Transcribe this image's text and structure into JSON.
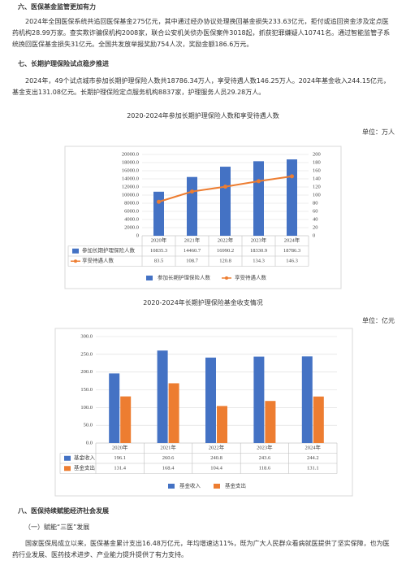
{
  "sections": [
    {
      "heading": "六、医保基金监管更加有力",
      "paragraph": "2024年全国医保系统共追回医保基金275亿元，其中通过经办协议处理挽回基金损失233.63亿元，拒付或追回资金涉及定点医药机构28.99万家。查实欺诈骗保机构2008家，联合公安机关侦办医保案件3018起，抓获犯罪嫌疑人10741名。通过智能监管子系统挽回医保基金损失31亿元。全国共发放举报奖励754人次，奖励金额186.6万元。"
    },
    {
      "heading": "七、长期护理保险试点稳步推进",
      "paragraph": "2024年，49个试点城市参加长期护理保险人数共18786.34万人，享受待遇人数146.25万人。2024年基金收入244.15亿元，基金支出131.08亿元。长期护理保险定点服务机构8837家，护理服务人员29.28万人。"
    },
    {
      "heading": "八、医保持续赋能经济社会发展",
      "subheading": "（一）赋能“三医”发展",
      "paragraph": "国家医保局成立以来，医保基金累计支出16.48万亿元，年均增速达11%，既为广大人民群众看病就医提供了坚实保障，也为医药行业发展、医药技术进步、产业能力提升提供了有力支持。"
    }
  ],
  "chart_data": [
    {
      "type": "bar",
      "title": "2020-2024年参加长期护理保险人数和享受待遇人数",
      "unit": "单位：万人",
      "categories": [
        "2020年",
        "2021年",
        "2022年",
        "2023年",
        "2024年"
      ],
      "series": [
        {
          "name": "参加长期护理保险人数",
          "color": "#4472c4",
          "values": [
            10835.3,
            14460.7,
            16990.2,
            18330.9,
            18786.3
          ]
        },
        {
          "name": "享受待遇人数",
          "color": "#ed7d31",
          "type": "line",
          "axis": "y2",
          "values": [
            83.5,
            108.7,
            120.8,
            134.3,
            146.3
          ]
        }
      ],
      "ylim": [
        0,
        20000
      ],
      "yticks": [
        0,
        {
          "value": 2000,
          "label": "2000.0"
        },
        {
          "value": 4000,
          "label": "4000.0"
        },
        {
          "value": 6000,
          "label": "6000.0"
        },
        {
          "value": 8000,
          "label": "8000.0"
        },
        {
          "value": 10000,
          "label": "10000.0"
        },
        {
          "value": 12000,
          "label": "12000.0"
        },
        {
          "value": 14000,
          "label": "14000.0"
        },
        {
          "value": 16000,
          "label": "16000.0"
        },
        {
          "value": 18000,
          "label": "18000.0"
        },
        {
          "value": 20000,
          "label": "20000.0"
        }
      ],
      "y2lim": [
        0,
        200
      ],
      "y2ticks": [
        0,
        20,
        40,
        60,
        80,
        100,
        120,
        140,
        160,
        180,
        200
      ],
      "grid": true
    },
    {
      "type": "bar",
      "title": "2020-2024年长期护理保险基金收支情况",
      "unit": "单位：亿元",
      "categories": [
        "2020年",
        "2021年",
        "2022年",
        "2023年",
        "2024年"
      ],
      "series": [
        {
          "name": "基金收入",
          "color": "#4472c4",
          "values": [
            196.1,
            260.6,
            240.8,
            243.6,
            244.2
          ]
        },
        {
          "name": "基金支出",
          "color": "#ed7d31",
          "values": [
            131.4,
            168.4,
            104.4,
            118.6,
            131.1
          ]
        }
      ],
      "ylim": [
        0,
        300
      ],
      "yticks": [
        {
          "value": 0,
          "label": "0.0"
        },
        {
          "value": 50,
          "label": "50.0"
        },
        {
          "value": 100,
          "label": "100.0"
        },
        {
          "value": 150,
          "label": "150.0"
        },
        {
          "value": 200,
          "label": "200.0"
        },
        {
          "value": 250,
          "label": "250.0"
        },
        {
          "value": 300,
          "label": "300.0"
        }
      ],
      "grid": true
    }
  ]
}
